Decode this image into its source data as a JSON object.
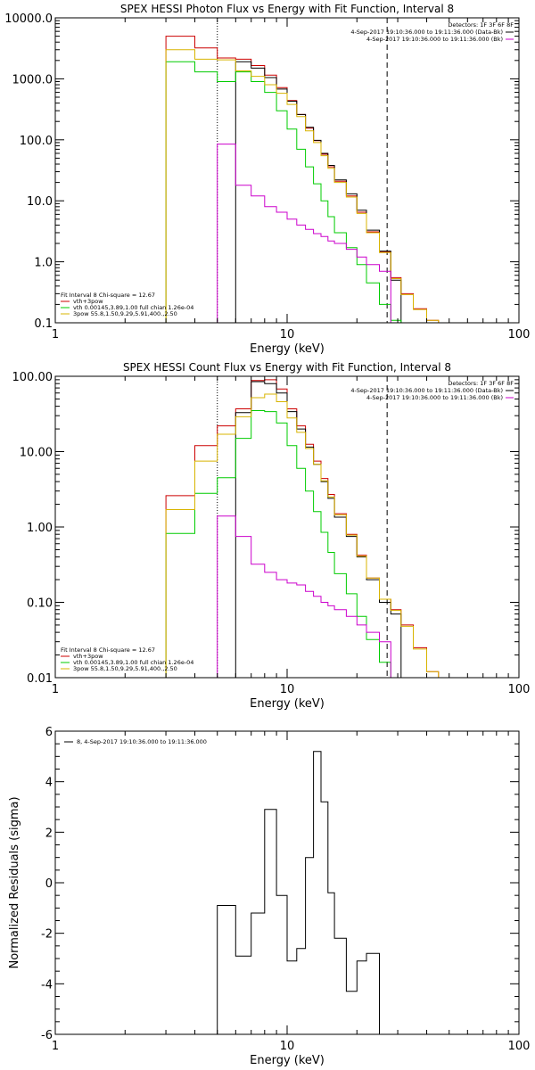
{
  "colors": {
    "background": "#ffffff",
    "axes": "#000000",
    "red": "#cc0000",
    "black": "#000000",
    "green": "#00cc00",
    "orange": "#d8b400",
    "magenta": "#cc00cc"
  },
  "chart_data": [
    {
      "type": "line",
      "title": "SPEX HESSI Photon Flux vs Energy with Fit Function, Interval 8",
      "xlabel": "Energy (keV)",
      "ylabel": "",
      "xscale": "log",
      "yscale": "log",
      "xlim": [
        1,
        100
      ],
      "ylim": [
        0.1,
        10000
      ],
      "x_ticks": [
        "1",
        "10",
        "100"
      ],
      "y_ticks": [
        "0.1",
        "1.0",
        "10.0",
        "100.0",
        "1000.0",
        "10000.0"
      ],
      "vlines": {
        "dotted": 5,
        "dashed": 27
      },
      "header_lines": [
        "Detectors: 1F 3F 6F 8F",
        "4-Sep-2017 19:10:36.000 to 19:11:36.000 (Data-Bk)",
        "4-Sep-2017 19:10:36.000 to 19:11:36.000 (Bk)"
      ],
      "legend": [
        "Fit Interval 8   Chi-square = 12.67",
        "vth+3pow",
        "vth 0.00145,3.89,1.00  full chian 1.26e-04",
        "3pow 55.8,1.50,9.29,5.91,400.,2.50"
      ],
      "edges": [
        3,
        4,
        5,
        6,
        7,
        8,
        9,
        10,
        11,
        12,
        13,
        14,
        15,
        16,
        18,
        20,
        22,
        25,
        28,
        31,
        35,
        40,
        45
      ],
      "series": [
        {
          "name": "Data-Bk",
          "color": "#000000",
          "values": [
            0,
            0,
            0,
            1900,
            1500,
            1050,
            680,
            430,
            260,
            160,
            98,
            60,
            38,
            22,
            13,
            7,
            3.3,
            1.5,
            0.5,
            0,
            0,
            0
          ]
        },
        {
          "name": "vth+3pow",
          "color": "#cc0000",
          "values": [
            5000,
            3200,
            2200,
            2100,
            1650,
            1150,
            720,
            440,
            260,
            155,
            97,
            58,
            36,
            21,
            12,
            6.5,
            3.1,
            1.45,
            0.55,
            0.3,
            0.17,
            0.11
          ]
        },
        {
          "name": "vth",
          "color": "#00cc00",
          "values": [
            1900,
            1300,
            900,
            1300,
            900,
            600,
            300,
            150,
            70,
            36,
            19,
            10,
            5.5,
            3,
            1.7,
            0.9,
            0.45,
            0.2,
            0.11,
            0,
            0,
            0
          ]
        },
        {
          "name": "3pow",
          "color": "#d8b400",
          "values": [
            3000,
            2100,
            2050,
            1350,
            1100,
            800,
            580,
            380,
            240,
            140,
            90,
            55,
            34,
            20,
            11.5,
            6.2,
            3,
            1.42,
            0.53,
            0.29,
            0.165,
            0.11
          ]
        },
        {
          "name": "Bk",
          "color": "#cc00cc",
          "values": [
            0,
            0,
            85,
            18,
            12,
            8,
            6.5,
            5,
            4,
            3.4,
            2.9,
            2.6,
            2.2,
            2,
            1.6,
            1.2,
            0.9,
            0.7,
            0,
            0,
            0,
            0
          ]
        }
      ]
    },
    {
      "type": "line",
      "title": "SPEX HESSI Count Flux vs Energy with Fit Function, Interval 8",
      "xlabel": "Energy (keV)",
      "ylabel": "",
      "xscale": "log",
      "yscale": "log",
      "xlim": [
        1,
        100
      ],
      "ylim": [
        0.01,
        100
      ],
      "x_ticks": [
        "1",
        "10",
        "100"
      ],
      "y_ticks": [
        "0.01",
        "0.10",
        "1.00",
        "10.00",
        "100.00"
      ],
      "vlines": {
        "dotted": 5,
        "dashed": 27
      },
      "header_lines": [
        "Detectors: 1F 3F 6F 8F",
        "4-Sep-2017 19:10:36.000 to 19:11:36.000 (Data-Bk)",
        "4-Sep-2017 19:10:36.000 to 19:11:36.000 (Bk)"
      ],
      "legend": [
        "Fit Interval 8   Chi-square = 12.67",
        "vth+3pow",
        "vth 0.00145,3.89,1.00  full chian 1.26e-04",
        "3pow 55.8,1.50,9.29,5.91,400.,2.50"
      ],
      "edges": [
        3,
        4,
        5,
        6,
        7,
        8,
        9,
        10,
        11,
        12,
        13,
        14,
        15,
        16,
        18,
        20,
        22,
        25,
        28,
        31,
        35,
        40,
        45
      ],
      "series": [
        {
          "name": "Data-Bk",
          "color": "#000000",
          "values": [
            0,
            0,
            0,
            33,
            85,
            80,
            60,
            34,
            20,
            11.5,
            6.8,
            4,
            2.4,
            1.35,
            0.75,
            0.4,
            0.2,
            0.1,
            0.07,
            0,
            0,
            0
          ]
        },
        {
          "name": "vth+3pow",
          "color": "#cc0000",
          "values": [
            2.6,
            12,
            22,
            37,
            88,
            90,
            68,
            37,
            22,
            12.5,
            7.5,
            4.4,
            2.7,
            1.5,
            0.8,
            0.42,
            0.21,
            0.11,
            0.08,
            0.05,
            0.025,
            0.012
          ]
        },
        {
          "name": "vth",
          "color": "#00cc00",
          "values": [
            0.82,
            2.8,
            4.5,
            15,
            35,
            34,
            24,
            12,
            6,
            3,
            1.6,
            0.85,
            0.46,
            0.24,
            0.13,
            0.065,
            0.032,
            0.016,
            0.01,
            0.01,
            0,
            0
          ]
        },
        {
          "name": "3pow",
          "color": "#d8b400",
          "values": [
            1.7,
            7.5,
            17,
            29,
            52,
            58,
            46,
            28,
            18,
            11,
            6.8,
            4.1,
            2.5,
            1.45,
            0.78,
            0.41,
            0.21,
            0.11,
            0.078,
            0.048,
            0.024,
            0.012
          ]
        },
        {
          "name": "Bk",
          "color": "#cc00cc",
          "values": [
            0,
            0,
            1.4,
            0.75,
            0.32,
            0.25,
            0.2,
            0.18,
            0.17,
            0.14,
            0.12,
            0.1,
            0.09,
            0.08,
            0.065,
            0.05,
            0.04,
            0.03,
            0,
            0,
            0,
            0
          ]
        }
      ]
    },
    {
      "type": "line",
      "title": "",
      "xlabel": "Energy (keV)",
      "ylabel": "Normalized Residuals (sigma)",
      "xscale": "log",
      "yscale": "linear",
      "xlim": [
        1,
        100
      ],
      "ylim": [
        -6,
        6
      ],
      "x_ticks": [
        "1",
        "10",
        "100"
      ],
      "y_ticks": [
        "-6",
        "-4",
        "-2",
        "0",
        "2",
        "4",
        "6"
      ],
      "legend": [
        "8,  4-Sep-2017 19:10:36.000 to 19:11:36.000"
      ],
      "edges": [
        5,
        6,
        7,
        8,
        9,
        10,
        11,
        12,
        13,
        14,
        15,
        16,
        18,
        20,
        22,
        25,
        28
      ],
      "series": [
        {
          "name": "8,  4-Sep-2017 19:10:36.000 to 19:11:36.000",
          "color": "#000000",
          "values": [
            -0.9,
            -2.9,
            -1.2,
            2.9,
            -0.5,
            -3.1,
            -2.6,
            1,
            5.2,
            3.2,
            -0.4,
            -2.2,
            -4.3,
            -3.1,
            -2.8,
            -6
          ]
        }
      ]
    }
  ]
}
